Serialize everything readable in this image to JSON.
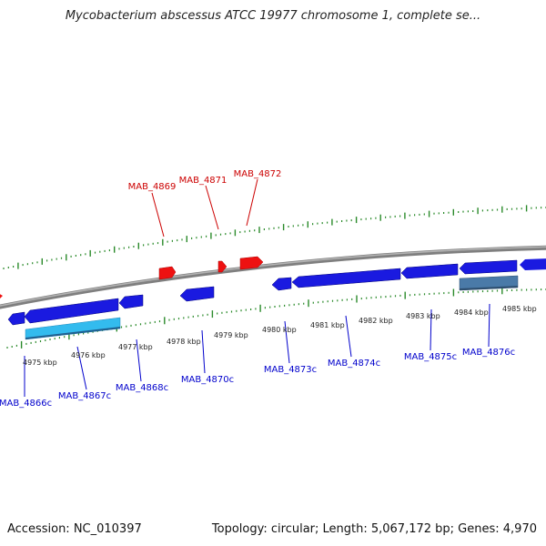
{
  "title": "Mycobacterium abscessus ATCC 19977 chromosome 1, complete se...",
  "footer": {
    "accession": "Accession: NC_010397",
    "summary": "Topology: circular; Length: 5,067,172 bp; Genes: 4,970"
  },
  "colors": {
    "backbone": "#8a8a8a",
    "tick": "#2a8a2a",
    "forward_gene": "#ee1111",
    "reverse_gene": "#1a1ae0",
    "highlight_gene": "#33bbee",
    "selected_gene": "#4a7aa8",
    "forward_label": "#cc0000",
    "reverse_label": "#0000cc"
  },
  "kbp_labels": [
    "4975 kbp",
    "4976 kbp",
    "4977 kbp",
    "4978 kbp",
    "4979 kbp",
    "4980 kbp",
    "4981 kbp",
    "4982 kbp",
    "4983 kbp",
    "4984 kbp",
    "4985 kbp"
  ],
  "forward_genes": [
    "MAB_4869",
    "MAB_4871",
    "MAB_4872"
  ],
  "reverse_genes": [
    "MAB_4866c",
    "MAB_4867c",
    "MAB_4868c",
    "MAB_4870c",
    "MAB_4873c",
    "MAB_4874c",
    "MAB_4875c",
    "MAB_4876c"
  ]
}
